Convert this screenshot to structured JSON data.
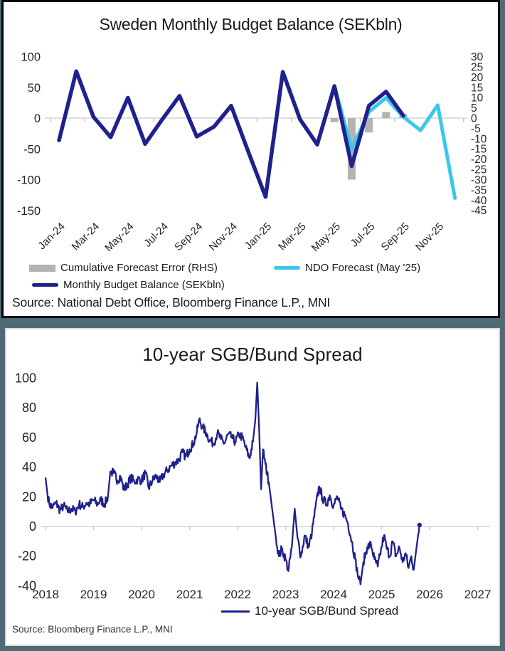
{
  "accent_colors": {
    "navy": "#1F218C",
    "cyan": "#3BC7EA",
    "gray_bar": "#B3B3B3",
    "gridline": "#D9D9D9",
    "frame_slate": "#4E6A76"
  },
  "chart_data": [
    {
      "id": "sweden-monthly-budget-balance",
      "type": "mixed",
      "title": "Sweden Monthly Budget Balance (SEKbln)",
      "categories": [
        "Jan-24",
        "Feb-24",
        "Mar-24",
        "Apr-24",
        "May-24",
        "Jun-24",
        "Jul-24",
        "Aug-24",
        "Sep-24",
        "Oct-24",
        "Nov-24",
        "Dec-24",
        "Jan-25",
        "Feb-25",
        "Mar-25",
        "Apr-25",
        "May-25",
        "Jun-25",
        "Jul-25",
        "Aug-25",
        "Sep-25",
        "Oct-25",
        "Nov-25",
        "Dec-25"
      ],
      "x_tick_labels": [
        "Jan-24",
        "Mar-24",
        "May-24",
        "Jul-24",
        "Sep-24",
        "Nov-24",
        "Jan-25",
        "Mar-25",
        "May-25",
        "Jul-25",
        "Sep-25",
        "Nov-25"
      ],
      "left_axis": {
        "ticks": [
          100,
          50,
          0,
          -50,
          -100,
          -150
        ],
        "range": [
          -150,
          100
        ]
      },
      "right_axis": {
        "ticks": [
          30,
          25,
          20,
          15,
          10,
          5,
          0,
          -5,
          -10,
          -15,
          -20,
          -25,
          -30,
          -35,
          -40,
          -45
        ],
        "range": [
          -45,
          30
        ]
      },
      "grid": "zero-line-only",
      "legend_position": "bottom",
      "series": [
        {
          "name": "Monthly Budget Balance (SEKbln)",
          "type": "line",
          "axis": "left",
          "color": "#1F218C",
          "start_index": 0,
          "values": [
            -36,
            76,
            2,
            -31,
            33,
            -42,
            -2,
            36,
            -30,
            -14,
            20,
            -55,
            -128,
            75,
            -2,
            -43,
            52,
            -78,
            20,
            43,
            4
          ]
        },
        {
          "name": "NDO Forecast (May '25)",
          "type": "line",
          "axis": "left",
          "color": "#3BC7EA",
          "start_index": 16,
          "values": [
            52,
            -50,
            10,
            33,
            2,
            -20,
            21,
            -130
          ]
        },
        {
          "name": "Cumulative Forecast Error (RHS)",
          "type": "bar",
          "axis": "right",
          "color": "#B3B3B3",
          "start_index": 16,
          "values": [
            -2,
            -30,
            -7,
            3,
            2
          ]
        }
      ],
      "source": "Source: National Debt Office, Bloomberg Finance L.P., MNI"
    },
    {
      "id": "sgb-bund-spread",
      "type": "line",
      "title": "10-year SGB/Bund Spread",
      "x_axis": {
        "ticks": [
          2018,
          2019,
          2020,
          2021,
          2022,
          2023,
          2024,
          2025,
          2026,
          2027
        ],
        "range": [
          2018,
          2027
        ]
      },
      "y_axis": {
        "ticks": [
          100,
          80,
          60,
          40,
          20,
          0,
          -20,
          -40
        ],
        "range": [
          -40,
          100
        ]
      },
      "grid": "zero-line-only",
      "legend_position": "bottom",
      "series": [
        {
          "name": "10-year SGB/Bund Spread",
          "color": "#1F218C",
          "end_marker": true,
          "points": [
            [
              2018.0,
              33
            ],
            [
              2018.04,
              22
            ],
            [
              2018.08,
              15
            ],
            [
              2018.15,
              13
            ],
            [
              2018.22,
              16
            ],
            [
              2018.3,
              11
            ],
            [
              2018.38,
              14
            ],
            [
              2018.46,
              10
            ],
            [
              2018.54,
              12
            ],
            [
              2018.62,
              10
            ],
            [
              2018.7,
              15
            ],
            [
              2018.78,
              13
            ],
            [
              2018.85,
              16
            ],
            [
              2018.92,
              15
            ],
            [
              2019.0,
              18
            ],
            [
              2019.08,
              15
            ],
            [
              2019.15,
              18
            ],
            [
              2019.23,
              15
            ],
            [
              2019.3,
              20
            ],
            [
              2019.35,
              37
            ],
            [
              2019.42,
              36
            ],
            [
              2019.5,
              31
            ],
            [
              2019.56,
              34
            ],
            [
              2019.63,
              25
            ],
            [
              2019.7,
              28
            ],
            [
              2019.78,
              33
            ],
            [
              2019.85,
              30
            ],
            [
              2019.92,
              32
            ],
            [
              2020.0,
              31
            ],
            [
              2020.08,
              36
            ],
            [
              2020.15,
              26
            ],
            [
              2020.23,
              31
            ],
            [
              2020.3,
              34
            ],
            [
              2020.38,
              30
            ],
            [
              2020.46,
              35
            ],
            [
              2020.54,
              38
            ],
            [
              2020.62,
              41
            ],
            [
              2020.7,
              43
            ],
            [
              2020.78,
              45
            ],
            [
              2020.85,
              50
            ],
            [
              2020.92,
              47
            ],
            [
              2021.0,
              52
            ],
            [
              2021.08,
              56
            ],
            [
              2021.15,
              63
            ],
            [
              2021.2,
              72
            ],
            [
              2021.27,
              67
            ],
            [
              2021.35,
              63
            ],
            [
              2021.42,
              58
            ],
            [
              2021.5,
              56
            ],
            [
              2021.58,
              63
            ],
            [
              2021.65,
              59
            ],
            [
              2021.73,
              56
            ],
            [
              2021.8,
              62
            ],
            [
              2021.88,
              60
            ],
            [
              2021.95,
              57
            ],
            [
              2022.03,
              62
            ],
            [
              2022.1,
              60
            ],
            [
              2022.17,
              53
            ],
            [
              2022.25,
              46
            ],
            [
              2022.32,
              57
            ],
            [
              2022.37,
              72
            ],
            [
              2022.41,
              97
            ],
            [
              2022.45,
              65
            ],
            [
              2022.49,
              25
            ],
            [
              2022.53,
              52
            ],
            [
              2022.58,
              42
            ],
            [
              2022.65,
              30
            ],
            [
              2022.72,
              12
            ],
            [
              2022.8,
              -8
            ],
            [
              2022.86,
              -20
            ],
            [
              2022.92,
              -15
            ],
            [
              2023.0,
              -22
            ],
            [
              2023.06,
              -30
            ],
            [
              2023.13,
              -14
            ],
            [
              2023.19,
              12
            ],
            [
              2023.25,
              -8
            ],
            [
              2023.32,
              -20
            ],
            [
              2023.4,
              -6
            ],
            [
              2023.48,
              -14
            ],
            [
              2023.55,
              -4
            ],
            [
              2023.62,
              12
            ],
            [
              2023.7,
              27
            ],
            [
              2023.77,
              19
            ],
            [
              2023.85,
              15
            ],
            [
              2023.92,
              21
            ],
            [
              2024.0,
              14
            ],
            [
              2024.08,
              20
            ],
            [
              2024.15,
              12
            ],
            [
              2024.23,
              8
            ],
            [
              2024.3,
              2
            ],
            [
              2024.38,
              -10
            ],
            [
              2024.45,
              -22
            ],
            [
              2024.5,
              -32
            ],
            [
              2024.56,
              -39
            ],
            [
              2024.62,
              -24
            ],
            [
              2024.7,
              -14
            ],
            [
              2024.78,
              -12
            ],
            [
              2024.85,
              -22
            ],
            [
              2024.92,
              -27
            ],
            [
              2025.0,
              -14
            ],
            [
              2025.05,
              -6
            ],
            [
              2025.1,
              -14
            ],
            [
              2025.17,
              -20
            ],
            [
              2025.23,
              -10
            ],
            [
              2025.3,
              -20
            ],
            [
              2025.37,
              -14
            ],
            [
              2025.44,
              -24
            ],
            [
              2025.5,
              -18
            ],
            [
              2025.56,
              -28
            ],
            [
              2025.62,
              -20
            ],
            [
              2025.67,
              -29
            ],
            [
              2025.72,
              -16
            ],
            [
              2025.76,
              -6
            ],
            [
              2025.79,
              1
            ]
          ]
        }
      ],
      "source": "Source: Bloomberg Finance L.P., MNI"
    }
  ]
}
